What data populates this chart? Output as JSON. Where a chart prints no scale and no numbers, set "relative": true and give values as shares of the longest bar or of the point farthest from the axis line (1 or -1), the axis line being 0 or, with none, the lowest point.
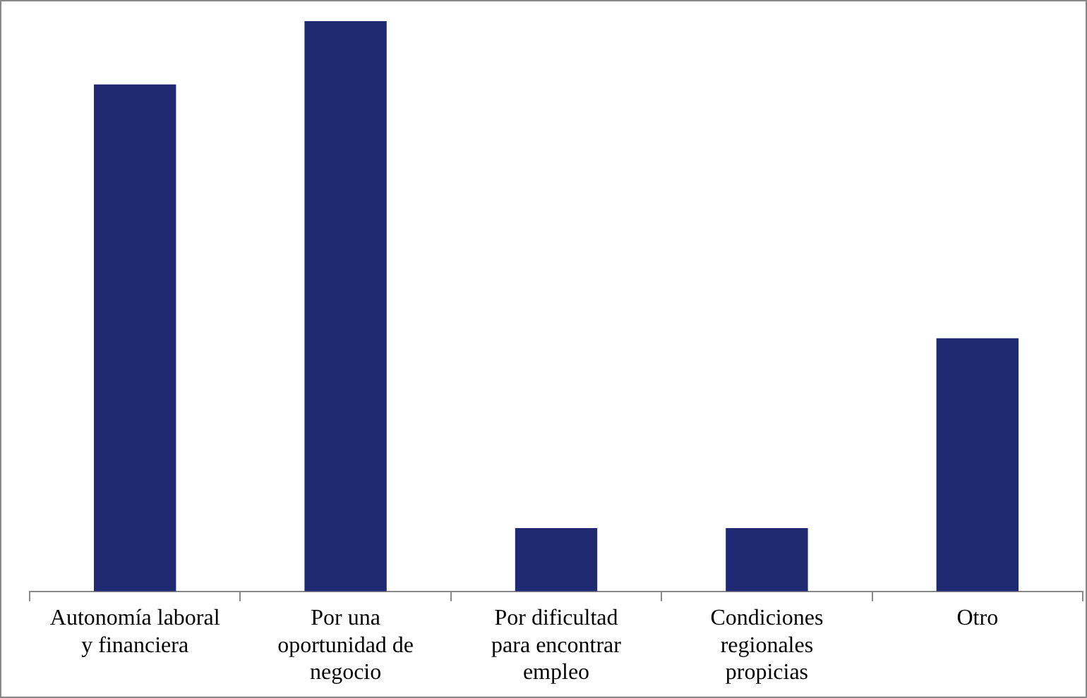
{
  "chart_data": {
    "type": "bar",
    "relative": true,
    "categories": [
      "Autonomía laboral y financiera",
      "Por una oportunidad de negocio",
      "Por dificultad para encontrar empleo",
      "Condiciones regionales propicias",
      "Otro"
    ],
    "values": [
      0.889,
      1,
      0.111,
      0.111,
      0.444
    ],
    "color": "#1f2a73",
    "grid": false,
    "legend": false
  }
}
